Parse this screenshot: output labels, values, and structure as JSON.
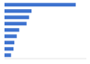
{
  "chart_data": {
    "type": "bar",
    "orientation": "horizontal",
    "categories": [
      null,
      null,
      null,
      null,
      null,
      null,
      null,
      null,
      null
    ],
    "values": [
      87,
      33,
      30,
      27,
      18,
      15,
      12,
      11,
      8
    ],
    "color": "#3d72cf",
    "xlim": [
      0,
      100
    ],
    "tick_labels": false,
    "grid": false
  }
}
